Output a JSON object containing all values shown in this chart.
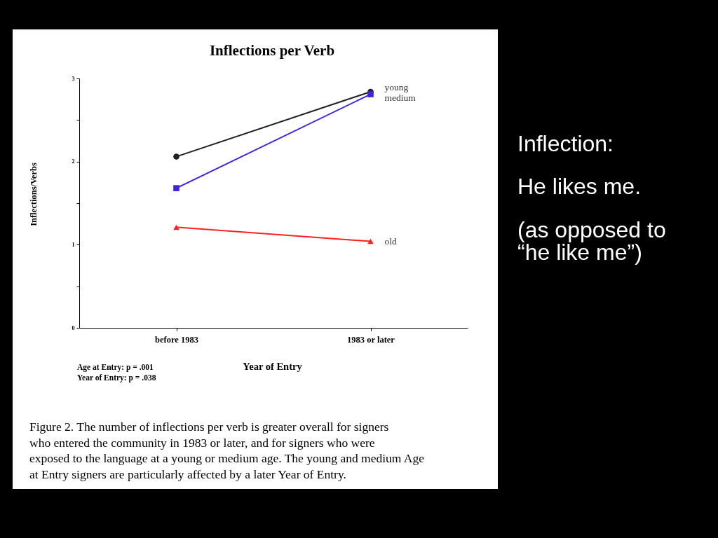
{
  "chart_data": {
    "type": "line",
    "title": "Inflections per Verb",
    "xlabel": "Year of Entry",
    "ylabel": "Inflections/Verbs",
    "categories": [
      "before 1983",
      "1983 or later"
    ],
    "series": [
      {
        "name": "young",
        "color": "#222222",
        "marker": "circle",
        "values": [
          2.06,
          2.84
        ]
      },
      {
        "name": "medium",
        "color": "#4422dd",
        "marker": "square",
        "values": [
          1.68,
          2.81
        ]
      },
      {
        "name": "old",
        "color": "#ff2020",
        "marker": "triangle",
        "values": [
          1.21,
          1.04
        ]
      }
    ],
    "ylim": [
      0,
      3
    ],
    "yticks": [
      0,
      {
        "value": 0.5,
        "label": null
      },
      1,
      {
        "value": 1.5,
        "label": null
      },
      2,
      {
        "value": 2.5,
        "label": null
      },
      3
    ],
    "annotations": [
      "Age at Entry:  p = .001",
      "Year of Entry: p = .038",
      "Figure 2. The number of inflections per verb is greater overall for signers who entered the community in 1983 or later, and for signers who were exposed to the language at a young or medium age. The young and medium Age at Entry signers are particularly affected by a later Year of Entry.",
      "Inflection:",
      "He likes me.",
      "(as opposed to “he like me”)"
    ]
  }
}
